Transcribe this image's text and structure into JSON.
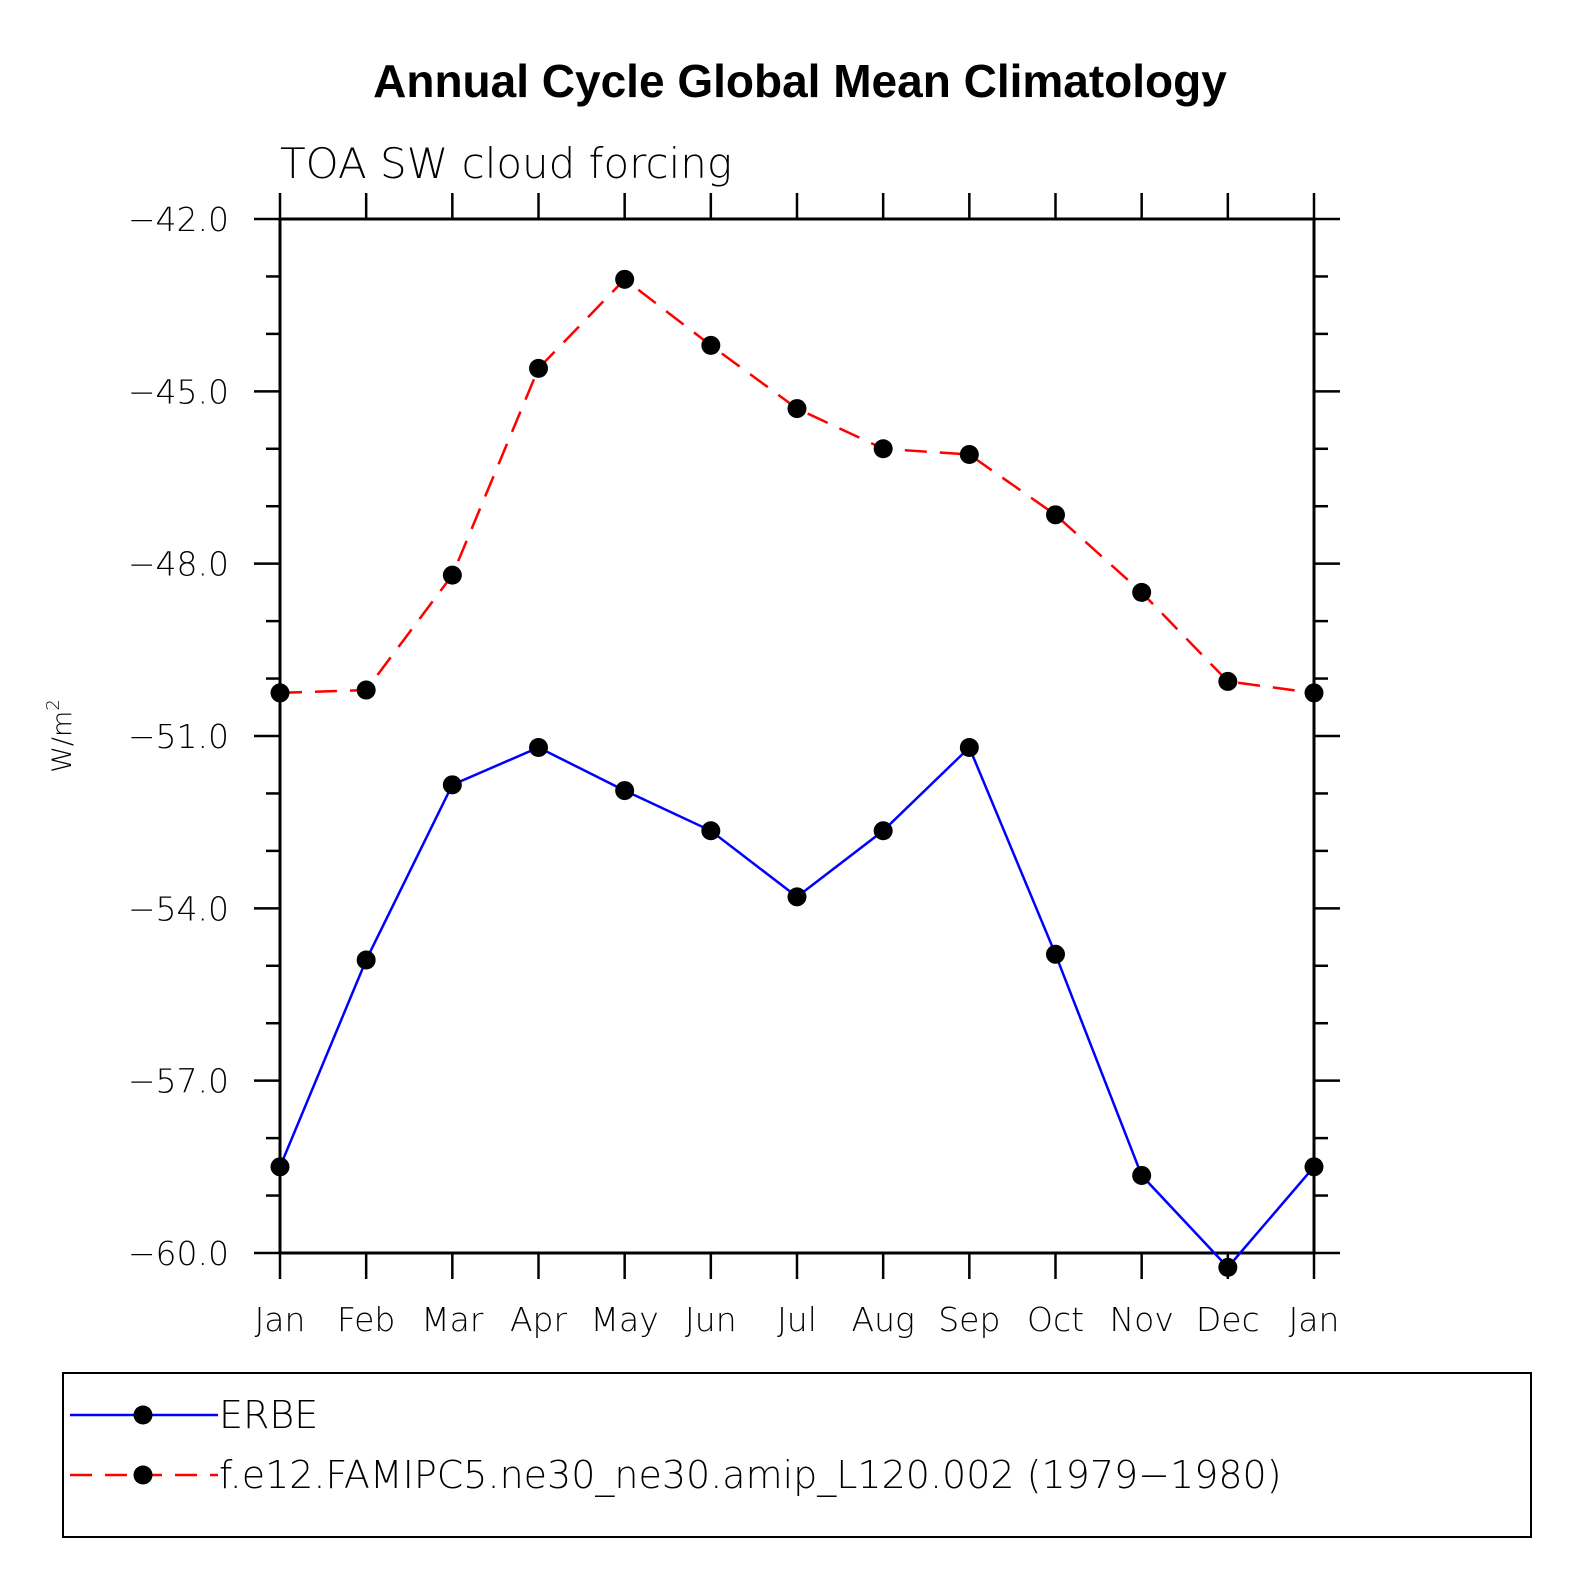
{
  "chart_data": {
    "type": "line",
    "title": "Annual Cycle Global Mean Climatology",
    "subtitle": "TOA SW cloud forcing",
    "ylabel": "W/m",
    "ylabel_superscript": "2",
    "xlabel": "",
    "categories": [
      "Jan",
      "Feb",
      "Mar",
      "Apr",
      "May",
      "Jun",
      "Jul",
      "Aug",
      "Sep",
      "Oct",
      "Nov",
      "Dec",
      "Jan"
    ],
    "ylim": [
      -60.0,
      -42.0
    ],
    "yticks": [
      "-42.0",
      "-45.0",
      "-48.0",
      "-51.0",
      "-54.0",
      "-57.0",
      "-60.0"
    ],
    "ytick_values": [
      -42,
      -45,
      -48,
      -51,
      -54,
      -57,
      -60
    ],
    "grid": false,
    "legend_position": "bottom",
    "series": [
      {
        "name": "ERBE",
        "color": "#0000ff",
        "line_style": "solid",
        "marker": "filled-circle",
        "values": [
          -58.5,
          -54.9,
          -51.85,
          -51.2,
          -51.95,
          -52.65,
          -53.8,
          -52.65,
          -51.2,
          -54.8,
          -58.65,
          -60.25,
          -58.5
        ]
      },
      {
        "name": "f.e12.FAMIPC5.ne30_ne30.amip_L120.002 (1979−1980)",
        "color": "#ff0000",
        "line_style": "dashed",
        "marker": "filled-circle",
        "values": [
          -50.25,
          -50.2,
          -48.2,
          -44.6,
          -43.05,
          -44.2,
          -45.3,
          -46.0,
          -46.1,
          -47.15,
          -48.5,
          -50.05,
          -50.25
        ]
      }
    ]
  }
}
